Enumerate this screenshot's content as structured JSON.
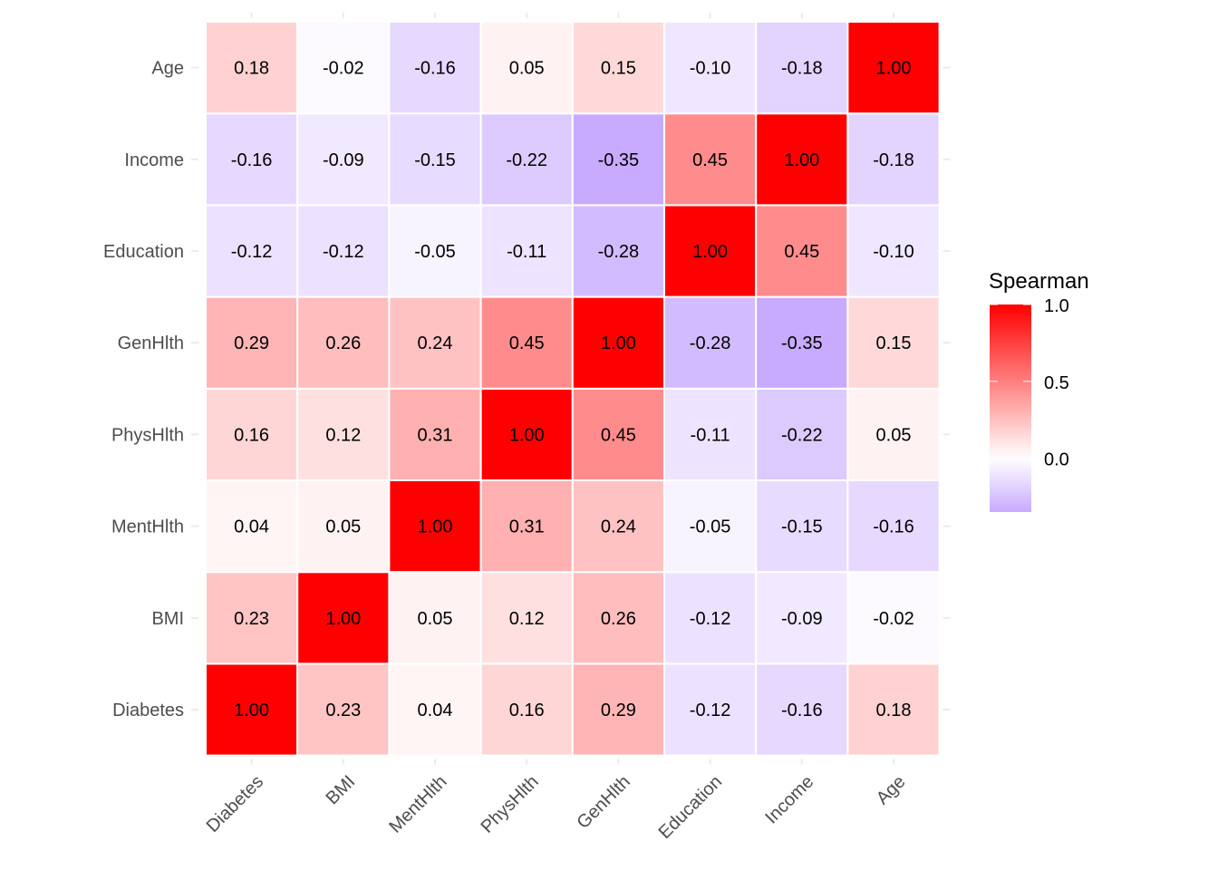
{
  "chart_data": {
    "type": "heatmap",
    "title": "",
    "xlabel": "",
    "ylabel": "",
    "x_categories": [
      "Diabetes",
      "BMI",
      "MentHlth",
      "PhysHlth",
      "GenHlth",
      "Education",
      "Income",
      "Age"
    ],
    "y_categories": [
      "Diabetes",
      "BMI",
      "MentHlth",
      "PhysHlth",
      "GenHlth",
      "Education",
      "Income",
      "Age"
    ],
    "y_order": "bottom-to-top",
    "matrix": [
      [
        1.0,
        0.23,
        0.04,
        0.16,
        0.29,
        -0.12,
        -0.16,
        0.18
      ],
      [
        0.23,
        1.0,
        0.05,
        0.12,
        0.26,
        -0.12,
        -0.09,
        -0.02
      ],
      [
        0.04,
        0.05,
        1.0,
        0.31,
        0.24,
        -0.05,
        -0.15,
        -0.16
      ],
      [
        0.16,
        0.12,
        0.31,
        1.0,
        0.45,
        -0.11,
        -0.22,
        0.05
      ],
      [
        0.29,
        0.26,
        0.24,
        0.45,
        1.0,
        -0.28,
        -0.35,
        0.15
      ],
      [
        -0.12,
        -0.12,
        -0.05,
        -0.11,
        -0.28,
        1.0,
        0.45,
        -0.1
      ],
      [
        -0.16,
        -0.09,
        -0.15,
        -0.22,
        -0.35,
        0.45,
        1.0,
        -0.18
      ],
      [
        0.18,
        -0.02,
        -0.16,
        0.05,
        0.15,
        -0.1,
        -0.18,
        1.0
      ]
    ],
    "value_format": "2 decimals",
    "legend": {
      "title": "Spearman",
      "position": "right",
      "ticks": [
        "1.0",
        "0.5",
        "0.0"
      ],
      "tick_values": [
        1.0,
        0.5,
        0.0
      ],
      "range": [
        -0.35,
        1.0
      ]
    },
    "color_scale": {
      "low": "#c8aaff",
      "mid": "#ffffff",
      "high": "#ff0000",
      "midpoint": 0,
      "limits": [
        -0.35,
        1.0
      ]
    },
    "grid": false
  }
}
